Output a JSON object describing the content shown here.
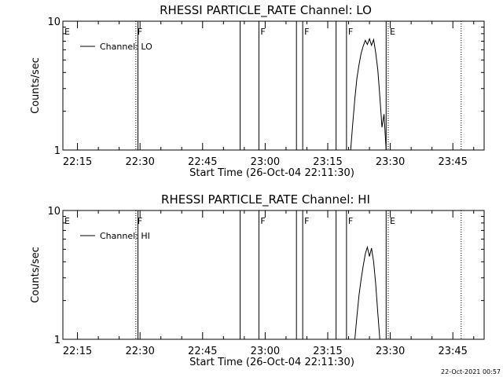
{
  "footer": {
    "stamp": "22-Oct-2021 00:57"
  },
  "chart_data": [
    {
      "type": "line",
      "title": "RHESSI PARTICLE_RATE Channel: LO",
      "xlabel": "Start Time (26-Oct-04 22:11:30)",
      "ylabel": "Counts/sec",
      "yscale": "log",
      "ylim": [
        1,
        10
      ],
      "ytick_labels": [
        "1",
        "10"
      ],
      "xlim": [
        "22:11:30",
        "23:52:30"
      ],
      "xtick_labels": [
        "22:15",
        "22:30",
        "22:45",
        "23:00",
        "23:15",
        "23:30",
        "23:45"
      ],
      "grid": false,
      "legend": {
        "position": "top-left",
        "entries": [
          "Channel: LO"
        ]
      },
      "flags": [
        {
          "time": "22:11:30",
          "label": "E",
          "style": "solid"
        },
        {
          "time": "22:29:00",
          "label": "F",
          "style": "dotted"
        },
        {
          "time": "22:29:30",
          "label": "",
          "style": "solid"
        },
        {
          "time": "22:54:00",
          "label": "",
          "style": "solid"
        },
        {
          "time": "22:58:30",
          "label": "F",
          "style": "solid"
        },
        {
          "time": "23:07:30",
          "label": "",
          "style": "solid"
        },
        {
          "time": "23:09:00",
          "label": "F",
          "style": "solid"
        },
        {
          "time": "23:17:00",
          "label": "",
          "style": "solid"
        },
        {
          "time": "23:19:30",
          "label": "F",
          "style": "solid"
        },
        {
          "time": "23:29:00",
          "label": "",
          "style": "solid"
        },
        {
          "time": "23:29:30",
          "label": "E",
          "style": "dotted"
        },
        {
          "time": "23:47:00",
          "label": "",
          "style": "dotted"
        }
      ],
      "series": [
        {
          "name": "Channel: LO",
          "points": [
            [
              "23:20:30",
              1.0
            ],
            [
              "23:21:00",
              1.6
            ],
            [
              "23:21:30",
              2.5
            ],
            [
              "23:22:00",
              3.6
            ],
            [
              "23:22:30",
              4.6
            ],
            [
              "23:23:00",
              5.6
            ],
            [
              "23:23:30",
              6.4
            ],
            [
              "23:24:00",
              7.1
            ],
            [
              "23:24:30",
              6.6
            ],
            [
              "23:25:00",
              7.3
            ],
            [
              "23:25:30",
              6.5
            ],
            [
              "23:26:00",
              7.2
            ],
            [
              "23:26:30",
              5.7
            ],
            [
              "23:27:00",
              4.2
            ],
            [
              "23:27:30",
              2.6
            ],
            [
              "23:28:00",
              1.5
            ],
            [
              "23:28:30",
              1.9
            ],
            [
              "23:29:00",
              1.0
            ]
          ]
        }
      ]
    },
    {
      "type": "line",
      "title": "RHESSI PARTICLE_RATE Channel: HI",
      "xlabel": "Start Time (26-Oct-04 22:11:30)",
      "ylabel": "Counts/sec",
      "yscale": "log",
      "ylim": [
        1,
        10
      ],
      "ytick_labels": [
        "1",
        "10"
      ],
      "xlim": [
        "22:11:30",
        "23:52:30"
      ],
      "xtick_labels": [
        "22:15",
        "22:30",
        "22:45",
        "23:00",
        "23:15",
        "23:30",
        "23:45"
      ],
      "grid": false,
      "legend": {
        "position": "top-left",
        "entries": [
          "Channel: HI"
        ]
      },
      "flags": [
        {
          "time": "22:11:30",
          "label": "E",
          "style": "solid"
        },
        {
          "time": "22:29:00",
          "label": "F",
          "style": "dotted"
        },
        {
          "time": "22:29:30",
          "label": "",
          "style": "solid"
        },
        {
          "time": "22:54:00",
          "label": "",
          "style": "solid"
        },
        {
          "time": "22:58:30",
          "label": "F",
          "style": "solid"
        },
        {
          "time": "23:07:30",
          "label": "",
          "style": "solid"
        },
        {
          "time": "23:09:00",
          "label": "F",
          "style": "solid"
        },
        {
          "time": "23:17:00",
          "label": "",
          "style": "solid"
        },
        {
          "time": "23:19:30",
          "label": "F",
          "style": "solid"
        },
        {
          "time": "23:29:00",
          "label": "",
          "style": "solid"
        },
        {
          "time": "23:29:30",
          "label": "E",
          "style": "dotted"
        },
        {
          "time": "23:47:00",
          "label": "",
          "style": "dotted"
        }
      ],
      "series": [
        {
          "name": "Channel: HI",
          "points": [
            [
              "23:21:30",
              1.0
            ],
            [
              "23:22:00",
              1.5
            ],
            [
              "23:22:30",
              2.2
            ],
            [
              "23:23:00",
              2.9
            ],
            [
              "23:23:30",
              3.7
            ],
            [
              "23:24:00",
              4.6
            ],
            [
              "23:24:30",
              5.2
            ],
            [
              "23:25:00",
              4.4
            ],
            [
              "23:25:30",
              5.1
            ],
            [
              "23:26:00",
              4.0
            ],
            [
              "23:26:30",
              2.7
            ],
            [
              "23:27:00",
              1.6
            ],
            [
              "23:27:30",
              1.0
            ]
          ]
        }
      ]
    }
  ]
}
